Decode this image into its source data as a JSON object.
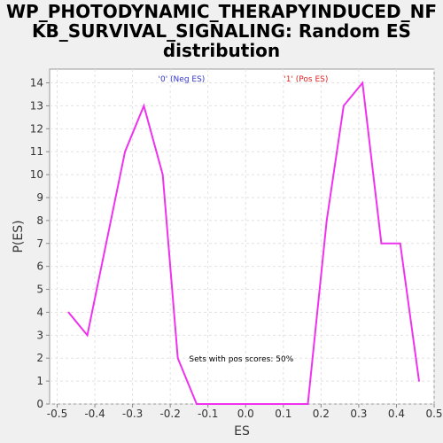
{
  "chart_data": {
    "type": "line",
    "title_lines": [
      "WP_PHOTODYNAMIC_THERAPYINDUCED_NF",
      "KB_SURVIVAL_SIGNALING: Random ES",
      "distribution"
    ],
    "xlabel": "ES",
    "ylabel": "P(ES)",
    "xlim": [
      -0.52,
      0.5
    ],
    "ylim": [
      0,
      14.6
    ],
    "xticks": [
      -0.5,
      -0.4,
      -0.3,
      -0.2,
      -0.1,
      0.0,
      0.1,
      0.2,
      0.3,
      0.4,
      0.5
    ],
    "yticks": [
      0,
      1,
      2,
      3,
      4,
      5,
      6,
      7,
      8,
      9,
      10,
      11,
      12,
      13,
      14
    ],
    "grid": true,
    "legend_placement": "top",
    "legend": [
      {
        "label": "'0' (Neg ES)",
        "color": "#3333cc",
        "x": -0.17
      },
      {
        "label": "'1' (Pos ES)",
        "color": "#dd2222",
        "x": 0.16
      }
    ],
    "annotation": {
      "text": "Sets with pos scores: 50%",
      "x": -0.15,
      "y": 2.0
    },
    "series": [
      {
        "color": "#ee33ee",
        "x": [
          -0.47,
          -0.42,
          -0.32,
          -0.27,
          -0.22,
          -0.18,
          -0.13,
          -0.08,
          -0.03,
          0.02,
          0.07,
          0.12,
          0.165,
          0.215,
          0.26,
          0.31,
          0.36,
          0.41,
          0.46
        ],
        "y": [
          4,
          3,
          11,
          13,
          10,
          2,
          0,
          0,
          0,
          0,
          0,
          0,
          0,
          8,
          13,
          14,
          7,
          7,
          1
        ]
      }
    ]
  }
}
